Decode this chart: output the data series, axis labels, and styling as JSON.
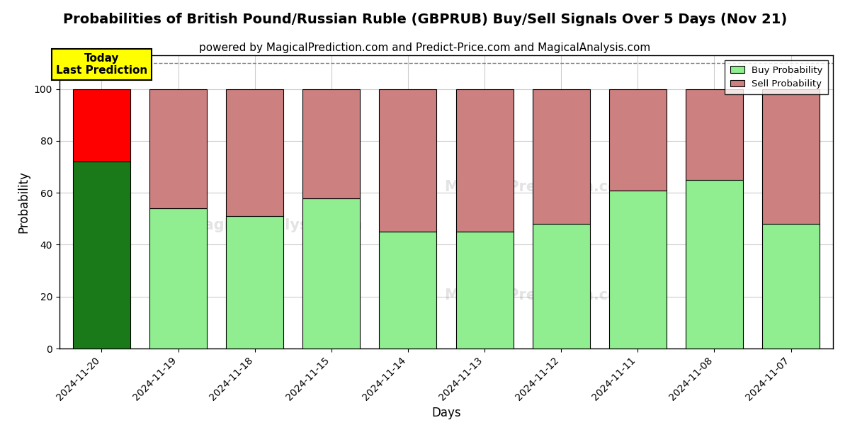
{
  "title": "Probabilities of British Pound/Russian Ruble (GBPRUB) Buy/Sell Signals Over 5 Days (Nov 21)",
  "subtitle": "powered by MagicalPrediction.com and Predict-Price.com and MagicalAnalysis.com",
  "xlabel": "Days",
  "ylabel": "Probability",
  "categories": [
    "2024-11-20",
    "2024-11-19",
    "2024-11-18",
    "2024-11-15",
    "2024-11-14",
    "2024-11-13",
    "2024-11-12",
    "2024-11-11",
    "2024-11-08",
    "2024-11-07"
  ],
  "buy_values": [
    72,
    54,
    51,
    58,
    45,
    45,
    48,
    61,
    65,
    48
  ],
  "sell_values": [
    28,
    46,
    49,
    42,
    55,
    55,
    52,
    39,
    35,
    52
  ],
  "buy_colors": [
    "#1a7a1a",
    "#90ee90",
    "#90ee90",
    "#90ee90",
    "#90ee90",
    "#90ee90",
    "#90ee90",
    "#90ee90",
    "#90ee90",
    "#90ee90"
  ],
  "sell_colors": [
    "#ff0000",
    "#cd8080",
    "#cd8080",
    "#cd8080",
    "#cd8080",
    "#cd8080",
    "#cd8080",
    "#cd8080",
    "#cd8080",
    "#cd8080"
  ],
  "legend_buy_color": "#90ee90",
  "legend_sell_color": "#cd8080",
  "today_box_color": "#ffff00",
  "today_label": "Today\nLast Prediction",
  "ylim": [
    0,
    113
  ],
  "yticks": [
    0,
    20,
    40,
    60,
    80,
    100
  ],
  "dashed_line_y": 110,
  "background_color": "#ffffff",
  "grid_color": "#cccccc",
  "title_fontsize": 14,
  "subtitle_fontsize": 11,
  "axis_label_fontsize": 12,
  "tick_fontsize": 10,
  "bar_width": 0.75
}
